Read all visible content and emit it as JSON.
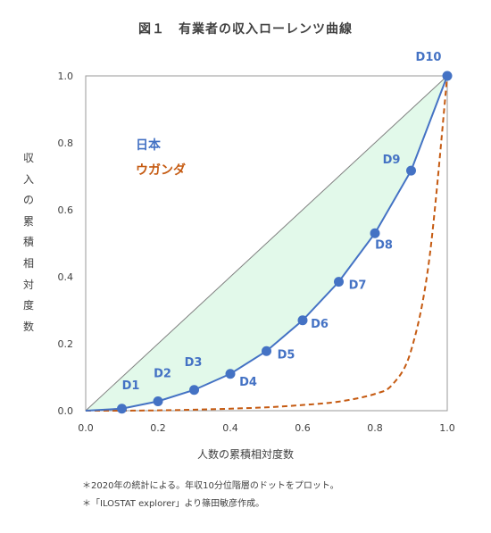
{
  "chart_data": {
    "type": "line",
    "title": "図１　有業者の収入ローレンツ曲線",
    "xlabel": "人数の累積相対度数",
    "ylabel": "収入の累積相対度数",
    "xlim": [
      0,
      1
    ],
    "ylim": [
      0,
      1
    ],
    "x_ticks": [
      "0.0",
      "0.2",
      "0.4",
      "0.6",
      "0.8",
      "1.0"
    ],
    "y_ticks": [
      "0.0",
      "0.2",
      "0.4",
      "0.6",
      "0.8",
      "1.0"
    ],
    "series": [
      {
        "name": "日本",
        "color": "#4472c4",
        "style": "solid-with-markers",
        "points": [
          {
            "x": 0.0,
            "y": 0.0
          },
          {
            "x": 0.1,
            "y": 0.006,
            "label": "D1"
          },
          {
            "x": 0.2,
            "y": 0.028,
            "label": "D2"
          },
          {
            "x": 0.3,
            "y": 0.062,
            "label": "D3"
          },
          {
            "x": 0.4,
            "y": 0.11,
            "label": "D4"
          },
          {
            "x": 0.5,
            "y": 0.178,
            "label": "D5"
          },
          {
            "x": 0.6,
            "y": 0.27,
            "label": "D6"
          },
          {
            "x": 0.7,
            "y": 0.385,
            "label": "D7"
          },
          {
            "x": 0.8,
            "y": 0.53,
            "label": "D8"
          },
          {
            "x": 0.9,
            "y": 0.717,
            "label": "D9"
          },
          {
            "x": 1.0,
            "y": 1.0,
            "label": "D10"
          }
        ]
      },
      {
        "name": "ウガンダ",
        "color": "#c55a11",
        "style": "dashed",
        "points": [
          {
            "x": 0.0,
            "y": 0.0
          },
          {
            "x": 0.1,
            "y": 0.0
          },
          {
            "x": 0.2,
            "y": 0.001
          },
          {
            "x": 0.3,
            "y": 0.003
          },
          {
            "x": 0.4,
            "y": 0.006
          },
          {
            "x": 0.5,
            "y": 0.01
          },
          {
            "x": 0.6,
            "y": 0.017
          },
          {
            "x": 0.7,
            "y": 0.027
          },
          {
            "x": 0.8,
            "y": 0.05
          },
          {
            "x": 0.85,
            "y": 0.08
          },
          {
            "x": 0.9,
            "y": 0.18
          },
          {
            "x": 0.95,
            "y": 0.45
          },
          {
            "x": 1.0,
            "y": 1.0
          }
        ]
      }
    ],
    "equality_line": {
      "from": [
        0,
        0
      ],
      "to": [
        1,
        1
      ],
      "color": "#808080"
    },
    "fill_between_equality_and_japan": "#e2f9ea",
    "legend_placement": "top-left",
    "grid": false
  },
  "notes": [
    "＊2020年の統計による。年収10分位階層のドットをプロット。",
    "＊「ILOSTAT explorer」より篠田敏彦作成。"
  ]
}
